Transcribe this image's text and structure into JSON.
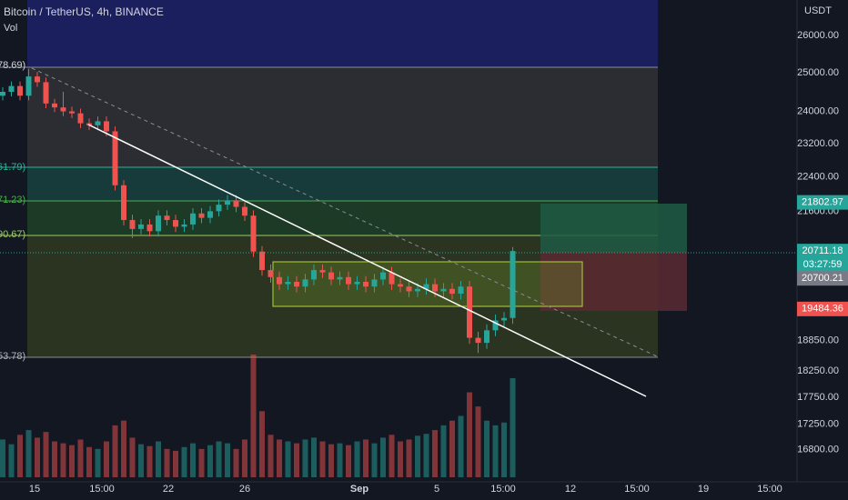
{
  "header": {
    "title": "Bitcoin / TetherUS, 4h, BINANCE",
    "volume_label": "Vol",
    "currency": "USDT"
  },
  "fib_labels": [
    "78.69)",
    "61.79)",
    "71.23)",
    "90.67)",
    "53.78)"
  ],
  "time_axis": [
    "15",
    "15:00",
    "22",
    "26",
    "Sep",
    "5",
    "15:00",
    "12",
    "15:00",
    "19",
    "15:00"
  ],
  "price_tags": {
    "target": 21802.97,
    "last": 20711.18,
    "countdown": "03:27:59",
    "prev": "20700.21",
    "stop": 19484.36
  },
  "chart_data": {
    "type": "candlestick",
    "log_scale": true,
    "grid": true,
    "ylim": [
      16236,
      26992
    ],
    "yticks": [
      {
        "value": 26000,
        "label": "26000.00"
      },
      {
        "value": 25000,
        "label": "25000.00"
      },
      {
        "value": 24000,
        "label": "24000.00"
      },
      {
        "value": 23200,
        "label": "23200.00"
      },
      {
        "value": 22400,
        "label": "22400.00"
      },
      {
        "value": 21600,
        "label": "21600.00"
      },
      {
        "value": 18850,
        "label": "18850.00"
      },
      {
        "value": 18250,
        "label": "18250.00"
      },
      {
        "value": 17750,
        "label": "17750.00"
      },
      {
        "value": 17250,
        "label": "17250.00"
      },
      {
        "value": 16800,
        "label": "16800.00"
      }
    ],
    "up_color": "#26a69a",
    "down_color": "#ef5350",
    "open": [
      24400,
      24500,
      24650,
      24400,
      24900,
      24750,
      24200,
      24100,
      24000,
      23950,
      23700,
      23650,
      23750,
      23500,
      22200,
      21400,
      21200,
      21300,
      21150,
      21500,
      21400,
      21250,
      21300,
      21550,
      21450,
      21600,
      21750,
      21850,
      21700,
      21500,
      20700,
      20300,
      20150,
      20000,
      20050,
      19950,
      20100,
      20300,
      20250,
      20100,
      20150,
      20000,
      20050,
      19950,
      20100,
      20250,
      20000,
      19950,
      19850,
      19900,
      20000,
      19850,
      19900,
      19800,
      19950,
      18900,
      18800,
      19050,
      19250,
      19300
    ],
    "high": [
      24620,
      24770,
      24770,
      25100,
      25020,
      24870,
      24320,
      24500,
      24120,
      24070,
      23820,
      23870,
      23870,
      23620,
      22320,
      21520,
      21420,
      21420,
      21620,
      21620,
      21520,
      21420,
      21670,
      21670,
      21720,
      21870,
      21970,
      21970,
      21820,
      21620,
      20820,
      20420,
      20270,
      20170,
      20170,
      20220,
      20420,
      20420,
      20370,
      20270,
      20270,
      20170,
      20170,
      20220,
      20370,
      20370,
      20120,
      20070,
      20020,
      20120,
      20120,
      20020,
      20020,
      20070,
      20070,
      19020,
      19170,
      19370,
      19420,
      20800
    ],
    "low": [
      24280,
      24380,
      24280,
      24280,
      24630,
      24080,
      23980,
      23880,
      23830,
      23580,
      23530,
      23530,
      23380,
      22080,
      21280,
      21000,
      21080,
      21030,
      21030,
      21280,
      21130,
      21130,
      21180,
      21330,
      21330,
      21480,
      21630,
      21580,
      21380,
      20580,
      20180,
      20030,
      19880,
      19880,
      19830,
      19830,
      19980,
      20130,
      19980,
      19980,
      19880,
      19880,
      19830,
      19830,
      19980,
      19880,
      19830,
      19730,
      19730,
      19780,
      19730,
      19730,
      19680,
      19680,
      18780,
      18600,
      18680,
      18930,
      19130,
      19180
    ],
    "close": [
      24500,
      24650,
      24400,
      24900,
      24750,
      24200,
      24100,
      24000,
      23950,
      23700,
      23650,
      23750,
      23500,
      22200,
      21400,
      21200,
      21300,
      21150,
      21500,
      21400,
      21250,
      21300,
      21550,
      21450,
      21600,
      21750,
      21850,
      21700,
      21500,
      20700,
      20300,
      20150,
      20000,
      20050,
      19950,
      20100,
      20300,
      20250,
      20100,
      20150,
      20000,
      20050,
      19950,
      20100,
      20250,
      20000,
      19950,
      19850,
      19900,
      20000,
      19850,
      19900,
      19800,
      19950,
      18900,
      18800,
      19050,
      19250,
      19300,
      20711.18
    ],
    "volume": [
      40,
      35,
      45,
      50,
      42,
      48,
      38,
      36,
      34,
      40,
      32,
      30,
      38,
      55,
      60,
      42,
      35,
      33,
      38,
      30,
      28,
      32,
      36,
      30,
      34,
      38,
      36,
      30,
      40,
      130,
      70,
      45,
      40,
      38,
      36,
      40,
      42,
      38,
      35,
      36,
      34,
      38,
      40,
      36,
      42,
      45,
      38,
      40,
      44,
      46,
      50,
      55,
      60,
      65,
      90,
      75,
      60,
      55,
      58,
      105
    ]
  }
}
